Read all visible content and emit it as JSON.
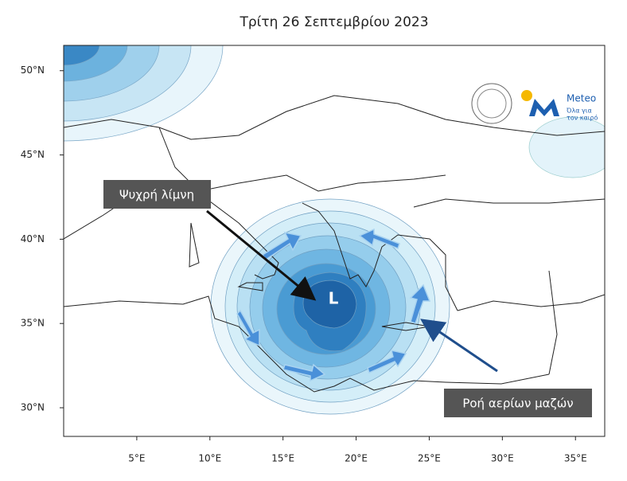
{
  "map": {
    "type": "map",
    "title": "Τρίτη 26 Σεπτεμβρίου 2023",
    "xlim": [
      0,
      37
    ],
    "ylim": [
      28.3,
      51.5
    ],
    "xticks": [
      {
        "value": 5,
        "label": "5°E"
      },
      {
        "value": 10,
        "label": "10°E"
      },
      {
        "value": 15,
        "label": "15°E"
      },
      {
        "value": 20,
        "label": "20°E"
      },
      {
        "value": 25,
        "label": "25°E"
      },
      {
        "value": 30,
        "label": "30°E"
      },
      {
        "value": 35,
        "label": "35°E"
      }
    ],
    "yticks": [
      {
        "value": 30,
        "label": "30°N"
      },
      {
        "value": 35,
        "label": "35°N"
      },
      {
        "value": 40,
        "label": "40°N"
      },
      {
        "value": 45,
        "label": "45°N"
      },
      {
        "value": 50,
        "label": "50°N"
      }
    ],
    "low_label": "L",
    "annotations": [
      "Ψυχρή λίμνη",
      "Ροή αερίων μαζών"
    ],
    "logo": {
      "name": "Meteo",
      "tagline": [
        "Όλα για",
        "τον καιρό"
      ]
    }
  }
}
